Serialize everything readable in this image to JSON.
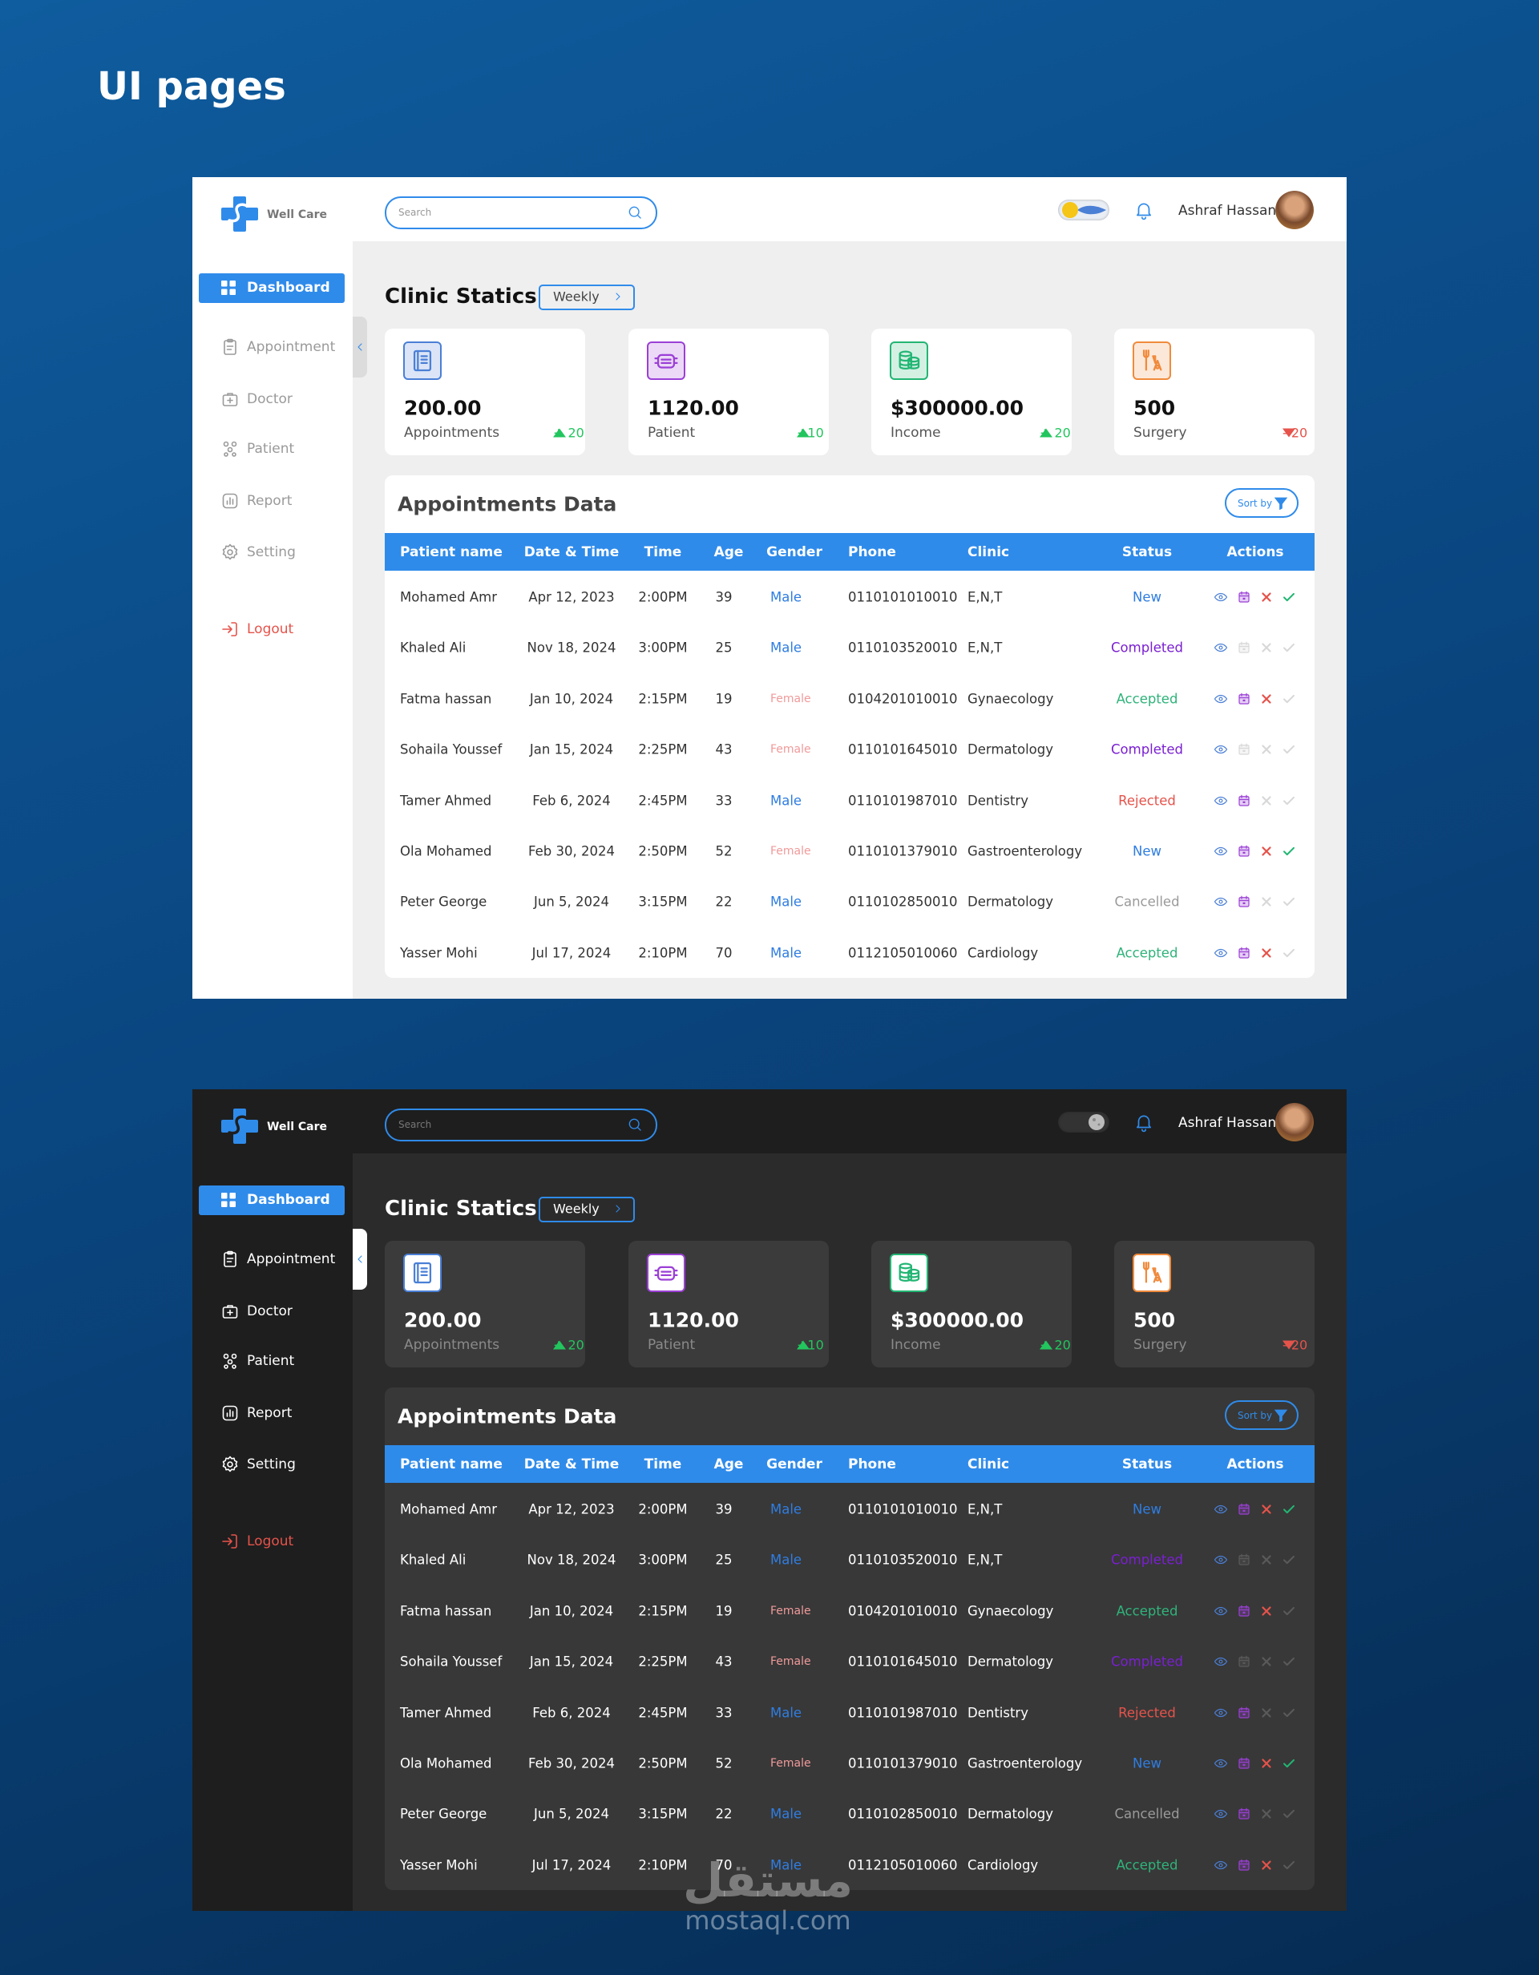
{
  "title": "UI pages",
  "app": {
    "brand": "Well Care",
    "search_placeholder": "Search",
    "user": "Ashraf Hassan",
    "nav": [
      "Dashboard",
      "Appointment",
      "Doctor",
      "Patient",
      "Report",
      "Setting"
    ],
    "logout": "Logout"
  },
  "stats": {
    "title": "Clinic Statics",
    "period": "Weekly",
    "cards": [
      {
        "value": "200.00",
        "label": "Appointments",
        "delta": "+ 20",
        "trend": "up",
        "color": "#4a7fd6"
      },
      {
        "value": "1120.00",
        "label": "Patient",
        "delta": "+10",
        "trend": "up",
        "color": "#9b3fd6"
      },
      {
        "value": "$300000.00",
        "label": "Income",
        "delta": "+ 20",
        "trend": "up",
        "color": "#22b573"
      },
      {
        "value": "500",
        "label": "Surgery",
        "delta": "- 20",
        "trend": "down",
        "color": "#f08a3c"
      }
    ]
  },
  "table": {
    "title": "Appointments Data",
    "sort": "Sort by",
    "columns": [
      "Patient name",
      "Date & Time",
      "Time",
      "Age",
      "Gender",
      "Phone",
      "Clinic",
      "Status",
      "Actions"
    ],
    "rows": [
      {
        "name": "Mohamed Amr",
        "date": "Apr 12, 2023",
        "time": "2:00PM",
        "age": 39,
        "gender": "Male",
        "phone": "0110101010010",
        "clinic": "E,N,T",
        "status": "New",
        "status_color": "#2f7de1",
        "actions": [
          true,
          true,
          true
        ]
      },
      {
        "name": "Khaled Ali",
        "date": "Nov 18, 2024",
        "time": "3:00PM",
        "age": 25,
        "gender": "Male",
        "phone": "0110103520010",
        "clinic": "E,N,T",
        "status": "Completed",
        "status_color": "#7a1fd1",
        "actions": [
          false,
          false,
          false
        ]
      },
      {
        "name": "Fatma hassan",
        "date": "Jan 10, 2024",
        "time": "2:15PM",
        "age": 19,
        "gender": "Female",
        "phone": "0104201010010",
        "clinic": "Gynaecology",
        "status": "Accepted",
        "status_color": "#2fb37a",
        "actions": [
          true,
          true,
          false
        ]
      },
      {
        "name": "Sohaila Youssef",
        "date": "Jan 15, 2024",
        "time": "2:25PM",
        "age": 43,
        "gender": "Female",
        "phone": "0110101645010",
        "clinic": "Dermatology",
        "status": "Completed",
        "status_color": "#7a1fd1",
        "actions": [
          false,
          false,
          false
        ]
      },
      {
        "name": "Tamer Ahmed",
        "date": "Feb 6, 2024",
        "time": "2:45PM",
        "age": 33,
        "gender": "Male",
        "phone": "0110101987010",
        "clinic": "Dentistry",
        "status": "Rejected",
        "status_color": "#e5534b",
        "actions": [
          true,
          false,
          false
        ]
      },
      {
        "name": "Ola Mohamed",
        "date": "Feb 30, 2024",
        "time": "2:50PM",
        "age": 52,
        "gender": "Female",
        "phone": "0110101379010",
        "clinic": "Gastroenterology",
        "status": "New",
        "status_color": "#2f7de1",
        "actions": [
          true,
          true,
          true
        ]
      },
      {
        "name": "Peter George",
        "date": "Jun 5, 2024",
        "time": "3:15PM",
        "age": 22,
        "gender": "Male",
        "phone": "0110102850010",
        "clinic": "Dermatology",
        "status": "Cancelled",
        "status_color": "#9a9a9a",
        "actions": [
          true,
          false,
          false
        ]
      },
      {
        "name": "Yasser Mohi",
        "date": "Jul 17, 2024",
        "time": "2:10PM",
        "age": 70,
        "gender": "Male",
        "phone": "0112105010060",
        "clinic": "Cardiology",
        "status": "Accepted",
        "status_color": "#2fb37a",
        "actions": [
          true,
          true,
          false
        ]
      }
    ]
  },
  "watermark": {
    "logo": "مستقل",
    "site": "mostaql.com"
  }
}
